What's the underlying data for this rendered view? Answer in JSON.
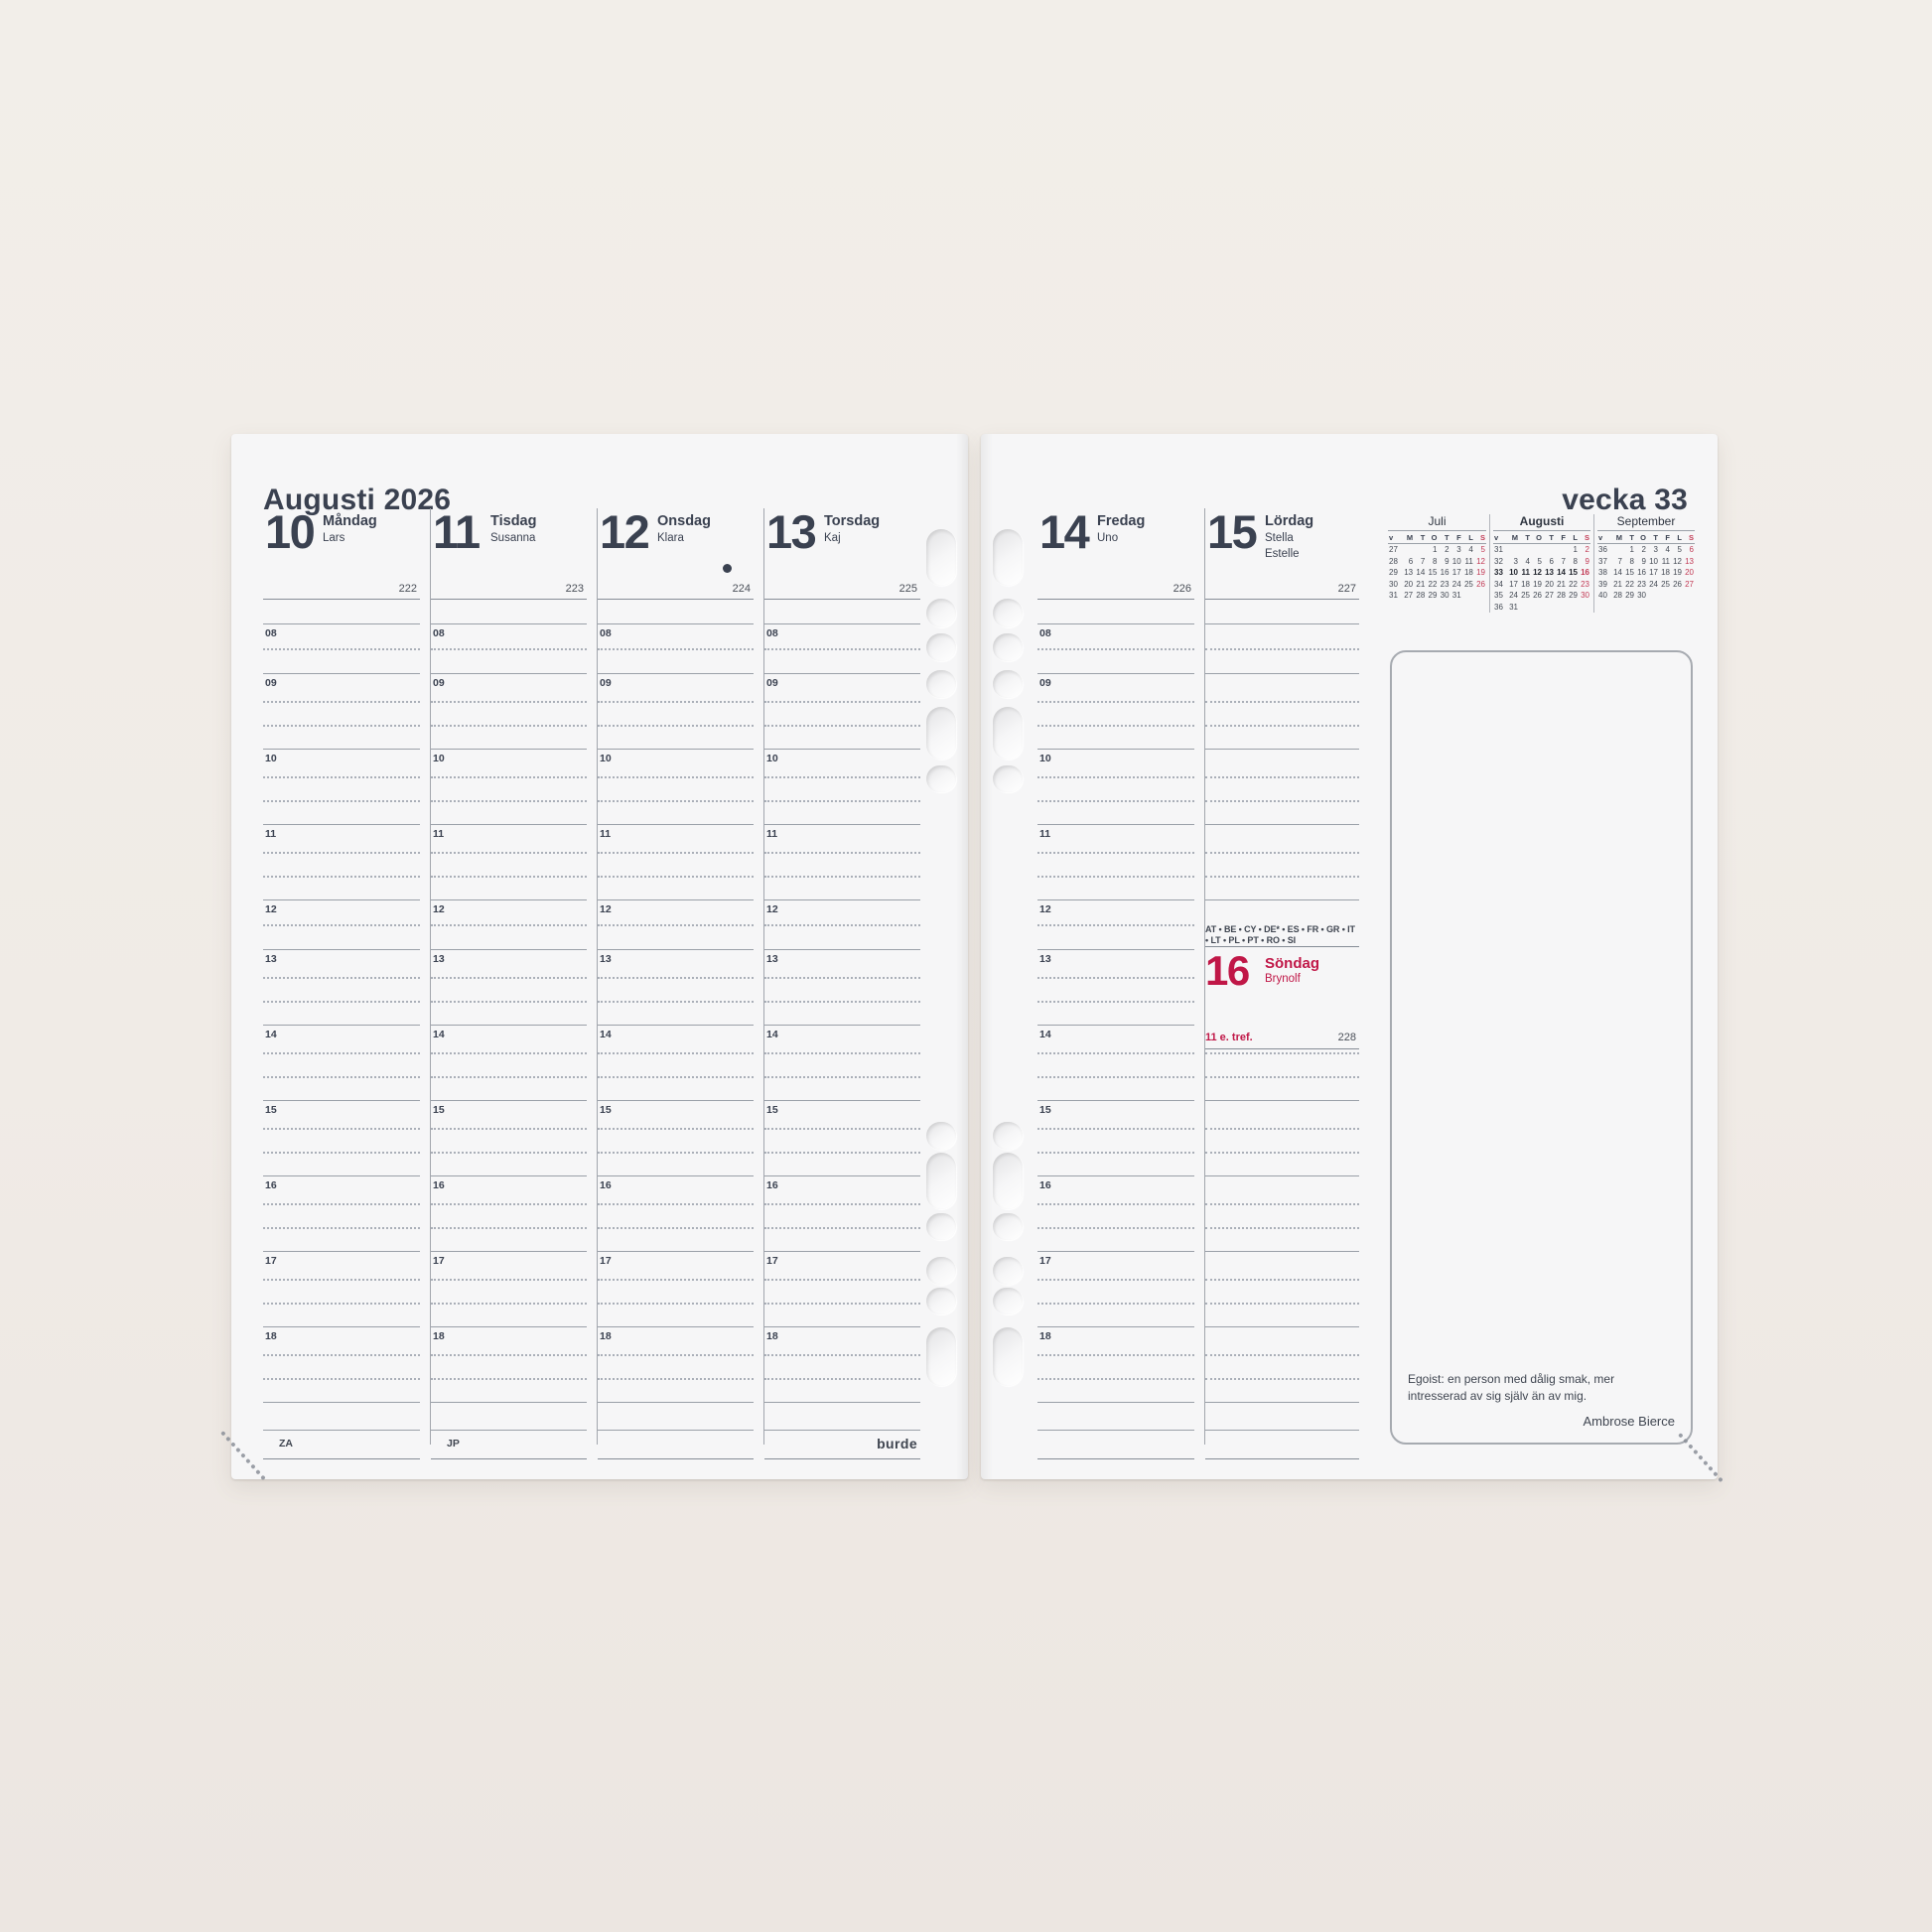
{
  "colors": {
    "ink": "#3a4150",
    "accent_red": "#c01747",
    "calendar_red": "#c23a55",
    "line_gray": "#9aa0a8",
    "page_bg": "#f6f6f7",
    "desk_bg": "#f0ebe6"
  },
  "page_left": {
    "title": "Augusti 2026",
    "hours": [
      "08",
      "09",
      "10",
      "11",
      "12",
      "13",
      "14",
      "15",
      "16",
      "17",
      "18"
    ],
    "days": [
      {
        "number": "10",
        "weekday": "Måndag",
        "names": [
          "Lars"
        ],
        "day_of_year": "222",
        "footer_code": "ZA"
      },
      {
        "number": "11",
        "weekday": "Tisdag",
        "names": [
          "Susanna"
        ],
        "day_of_year": "223",
        "footer_code": "JP"
      },
      {
        "number": "12",
        "weekday": "Onsdag",
        "names": [
          "Klara"
        ],
        "day_of_year": "224",
        "moon": "new-moon"
      },
      {
        "number": "13",
        "weekday": "Torsdag",
        "names": [
          "Kaj"
        ],
        "day_of_year": "225",
        "footer_logo": "burde"
      }
    ]
  },
  "page_right": {
    "title": "vecka 33",
    "days": [
      {
        "number": "14",
        "weekday": "Fredag",
        "names": [
          "Uno"
        ],
        "day_of_year": "226",
        "labeled": true
      },
      {
        "number": "15",
        "weekday": "Lördag",
        "names": [
          "Stella",
          "Estelle"
        ],
        "day_of_year": "227",
        "labeled": false
      }
    ],
    "flag_codes": "AT • BE • CY • DE* • ES • FR • GR • IT • LT • PL • PT • RO • SI",
    "sunday": {
      "number": "16",
      "weekday": "Söndag",
      "name": "Brynolf",
      "church_day": "11 e. tref.",
      "day_of_year": "228"
    },
    "quote": {
      "text": "Egoist: en person med dålig smak, mer intresserad av sig själv än av mig.",
      "author": "Ambrose Bierce"
    },
    "mini_calendars": {
      "weekday_headers": [
        "v",
        "M",
        "T",
        "O",
        "T",
        "F",
        "L",
        "S"
      ],
      "months": [
        {
          "name": "Juli",
          "current": false,
          "weeks": [
            {
              "w": "27",
              "days": [
                "",
                "",
                "1",
                "2",
                "3",
                "4",
                "5"
              ]
            },
            {
              "w": "28",
              "days": [
                "6",
                "7",
                "8",
                "9",
                "10",
                "11",
                "12"
              ]
            },
            {
              "w": "29",
              "days": [
                "13",
                "14",
                "15",
                "16",
                "17",
                "18",
                "19"
              ]
            },
            {
              "w": "30",
              "days": [
                "20",
                "21",
                "22",
                "23",
                "24",
                "25",
                "26"
              ]
            },
            {
              "w": "31",
              "days": [
                "27",
                "28",
                "29",
                "30",
                "31",
                "",
                ""
              ]
            }
          ]
        },
        {
          "name": "Augusti",
          "current": true,
          "weeks": [
            {
              "w": "31",
              "days": [
                "",
                "",
                "",
                "",
                "",
                "1",
                "2"
              ]
            },
            {
              "w": "32",
              "days": [
                "3",
                "4",
                "5",
                "6",
                "7",
                "8",
                "9"
              ]
            },
            {
              "w": "33",
              "bold": true,
              "days": [
                "10",
                "11",
                "12",
                "13",
                "14",
                "15",
                "16"
              ]
            },
            {
              "w": "34",
              "days": [
                "17",
                "18",
                "19",
                "20",
                "21",
                "22",
                "23"
              ]
            },
            {
              "w": "35",
              "days": [
                "24",
                "25",
                "26",
                "27",
                "28",
                "29",
                "30"
              ]
            },
            {
              "w": "36",
              "days": [
                "31",
                "",
                "",
                "",
                "",
                "",
                ""
              ]
            }
          ]
        },
        {
          "name": "September",
          "current": false,
          "weeks": [
            {
              "w": "36",
              "days": [
                "",
                "1",
                "2",
                "3",
                "4",
                "5",
                "6"
              ]
            },
            {
              "w": "37",
              "days": [
                "7",
                "8",
                "9",
                "10",
                "11",
                "12",
                "13"
              ]
            },
            {
              "w": "38",
              "days": [
                "14",
                "15",
                "16",
                "17",
                "18",
                "19",
                "20"
              ]
            },
            {
              "w": "39",
              "days": [
                "21",
                "22",
                "23",
                "24",
                "25",
                "26",
                "27"
              ]
            },
            {
              "w": "40",
              "days": [
                "28",
                "29",
                "30",
                "",
                "",
                "",
                ""
              ]
            }
          ]
        }
      ]
    }
  }
}
